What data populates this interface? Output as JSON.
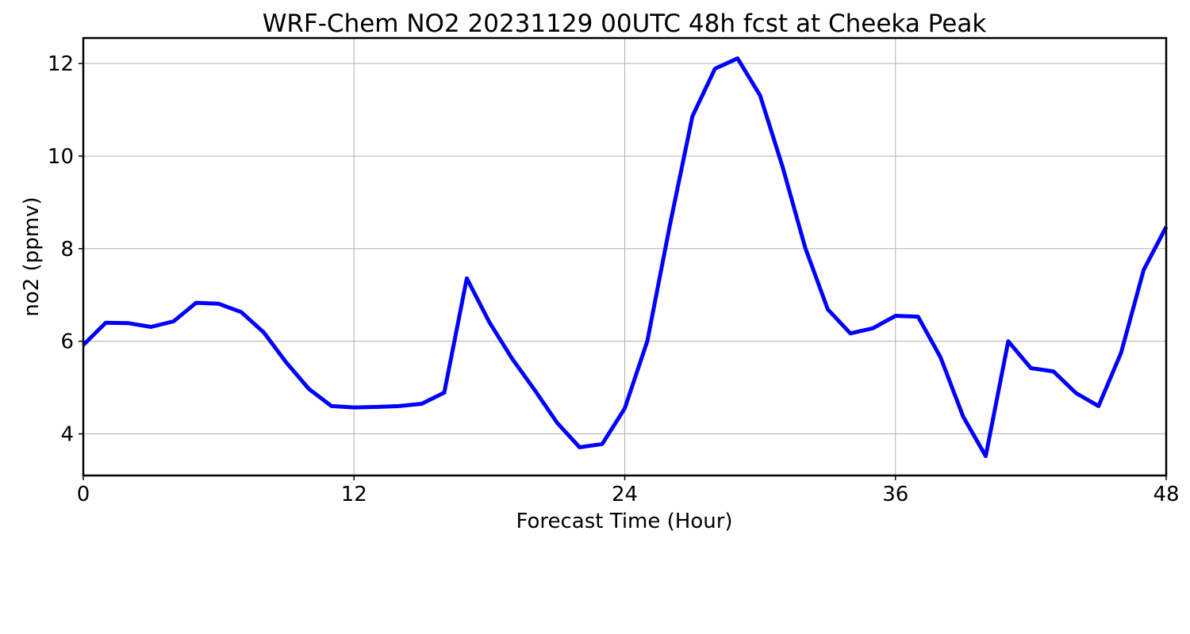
{
  "chart_data": {
    "type": "line",
    "title": "WRF-Chem NO2  20231129 00UTC 48h fcst at Cheeka Peak",
    "xlabel": "Forecast Time (Hour)",
    "ylabel": "no2  (ppmv)",
    "xlim": [
      0,
      48
    ],
    "ylim": [
      3.1,
      12.55
    ],
    "xticks": [
      0,
      12,
      24,
      36,
      48
    ],
    "yticks": [
      4,
      6,
      8,
      10,
      12
    ],
    "grid": true,
    "line_color": "#0000ff",
    "series": [
      {
        "x": [
          0,
          1,
          2,
          3,
          4,
          5,
          6,
          7,
          8,
          9,
          10,
          11,
          12,
          13,
          14,
          15,
          16,
          17,
          18,
          19,
          20,
          21,
          22,
          23,
          24,
          25,
          26,
          27,
          28,
          29,
          30,
          31,
          32,
          33,
          34,
          35,
          36,
          37,
          38,
          39,
          40,
          41,
          42,
          43,
          44,
          45,
          46,
          47,
          48
        ],
        "values": [
          5.92,
          6.4,
          6.39,
          6.31,
          6.43,
          6.83,
          6.81,
          6.63,
          6.19,
          5.54,
          4.97,
          4.6,
          4.57,
          4.58,
          4.6,
          4.65,
          4.89,
          7.36,
          6.41,
          5.63,
          4.95,
          4.24,
          3.71,
          3.78,
          4.55,
          6.0,
          8.51,
          10.86,
          11.89,
          12.11,
          11.31,
          9.76,
          8.02,
          6.69,
          6.17,
          6.28,
          6.55,
          6.53,
          5.65,
          4.37,
          3.52,
          6.0,
          5.42,
          5.35,
          4.88,
          4.6,
          5.75,
          7.54,
          8.47
        ]
      }
    ]
  }
}
